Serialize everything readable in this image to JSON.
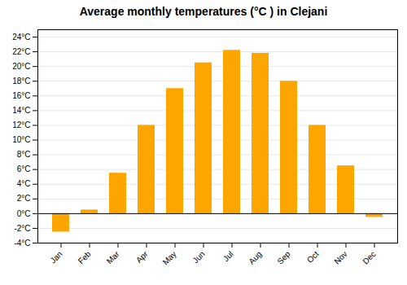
{
  "chart_data": {
    "type": "bar",
    "title": "Average monthly temperatures (°C ) in Clejani",
    "categories": [
      "Jan",
      "Feb",
      "Mar",
      "Apr",
      "May",
      "Jun",
      "Jul",
      "Aug",
      "Sep",
      "Oct",
      "Nov",
      "Dec"
    ],
    "values": [
      -2.5,
      0.5,
      5.5,
      12.0,
      17.0,
      20.5,
      22.2,
      21.8,
      18.0,
      12.0,
      6.5,
      -0.5
    ],
    "color": "#FFA500",
    "ylim": [
      -4,
      25
    ],
    "yticks": [
      {
        "value": -4,
        "label": "-4°C"
      },
      {
        "value": -2,
        "label": "-2°C"
      },
      {
        "value": 0,
        "label": "0°C"
      },
      {
        "value": 2,
        "label": "2°C"
      },
      {
        "value": 4,
        "label": "4°C"
      },
      {
        "value": 6,
        "label": "6°C"
      },
      {
        "value": 8,
        "label": "8°C"
      },
      {
        "value": 10,
        "label": "10°C"
      },
      {
        "value": 12,
        "label": "12°C"
      },
      {
        "value": 14,
        "label": "14°C"
      },
      {
        "value": 16,
        "label": "16°C"
      },
      {
        "value": 18,
        "label": "18°C"
      },
      {
        "value": 20,
        "label": "20°C"
      },
      {
        "value": 22,
        "label": "22°C"
      },
      {
        "value": 24,
        "label": "24°C"
      }
    ],
    "grid": true
  }
}
